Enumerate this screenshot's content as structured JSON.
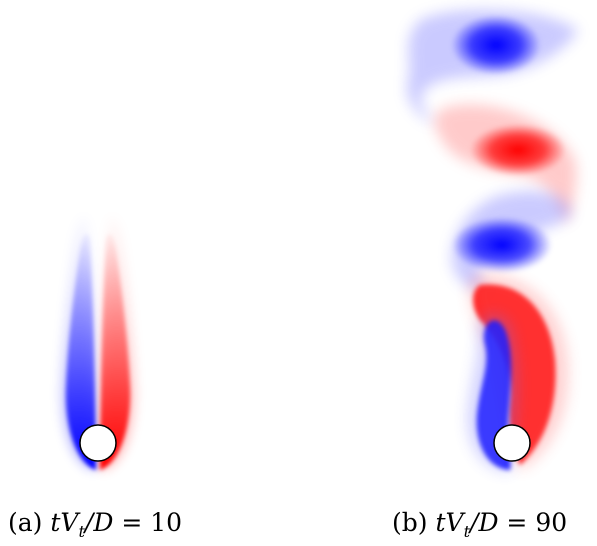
{
  "panels": [
    {
      "id": "a",
      "tag": "(a)",
      "expr_t": "tV",
      "expr_sub": "t",
      "expr_rest": "/D",
      "expr_eq": " = ",
      "value": "10"
    },
    {
      "id": "b",
      "tag": "(b)",
      "expr_t": "tV",
      "expr_sub": "t",
      "expr_rest": "/D",
      "expr_eq": " = ",
      "value": "90"
    }
  ],
  "colors": {
    "positive": "#ff0000",
    "negative": "#0000ff",
    "body": "#ffffff"
  }
}
